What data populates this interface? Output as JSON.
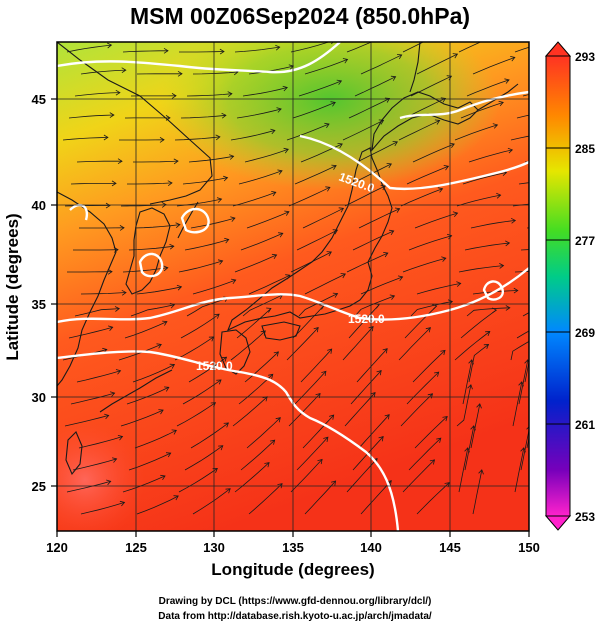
{
  "title": "MSM 00Z06Sep2024 (850.0hPa)",
  "xlabel": "Longitude (degrees)",
  "ylabel": "Latitude  (degrees)",
  "map": {
    "lon_range": [
      120,
      150
    ],
    "lat_range": [
      22.5,
      48
    ],
    "lon_ticks": [
      "120",
      "125",
      "130",
      "135",
      "140",
      "145",
      "150"
    ],
    "lat_ticks": [
      "25",
      "30",
      "35",
      "40",
      "45"
    ],
    "grid": true,
    "field": "temperature shading with streamlines and geopotential height contours",
    "contour_labels": [
      "1520.0",
      "1520.0",
      "1520.0"
    ]
  },
  "colorbar": {
    "min": 253,
    "max": 293,
    "labels": [
      "293",
      "285",
      "277",
      "269",
      "261",
      "253"
    ],
    "colors": [
      "#ff3322",
      "#ff8800",
      "#e6e600",
      "#44dd22",
      "#00cc88",
      "#0088ff",
      "#0022cc",
      "#7700bb",
      "#ff22cc"
    ]
  },
  "footer": {
    "line1": "Drawing by DCL (https://www.gfd-dennou.org/library/dcl/)",
    "line2": "Data from http://database.rish.kyoto-u.ac.jp/arch/jmadata/"
  }
}
